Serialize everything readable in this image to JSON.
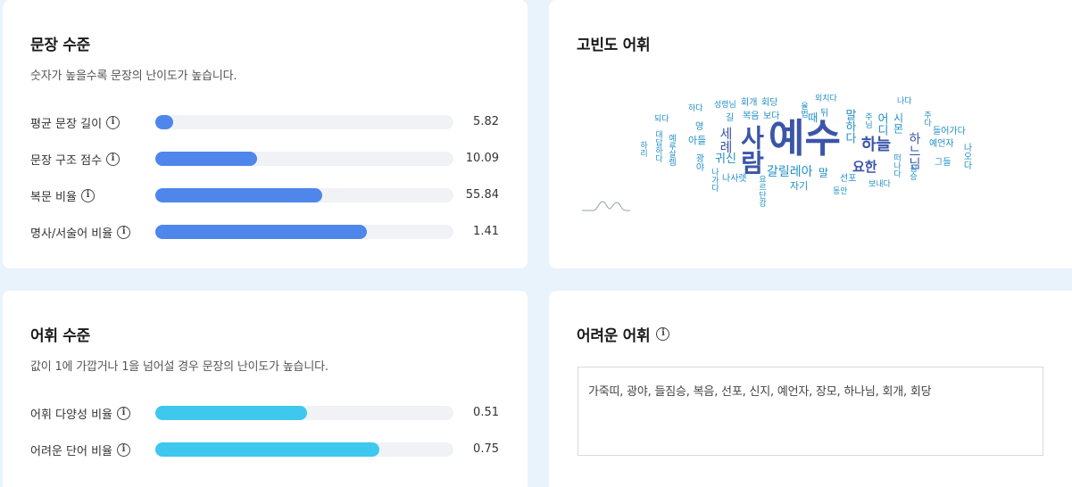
{
  "sentence_level": {
    "title": "문장 수준",
    "desc": "숫자가 높을수록 문장의 난이도가 높습니다.",
    "rows": [
      {
        "label": "평균 문장 길이",
        "value": "5.82",
        "fill": 0.06
      },
      {
        "label": "문장 구조 점수",
        "value": "10.09",
        "fill": 0.34
      },
      {
        "label": "복문 비율",
        "value": "55.84",
        "fill": 0.56
      },
      {
        "label": "명사/서술어 비율",
        "value": "1.41",
        "fill": 0.71
      }
    ]
  },
  "frequent_words": {
    "title": "고빈도 어휘",
    "words": [
      "예수",
      "사람",
      "하늘",
      "요한",
      "갈릴레아",
      "세례",
      "귀신",
      "아들",
      "나사렛",
      "자기",
      "말",
      "하느님",
      "말하다",
      "어디",
      "선포",
      "때",
      "영",
      "길",
      "복음",
      "보다",
      "회개",
      "회당",
      "하다",
      "되다",
      "성령님",
      "외치다",
      "뒤",
      "나다",
      "들어가다",
      "예언자",
      "그들",
      "나오다",
      "보내다",
      "동안",
      "광야",
      "대답하다",
      "하리",
      "예루살렘",
      "요르단강",
      "나가다",
      "시몬",
      "짐승",
      "주님",
      "주다",
      "떠나다",
      "율법"
    ]
  },
  "vocab_level": {
    "title": "어휘 수준",
    "desc": "값이 1에 가깝거나 1을 넘어설 경우 문장의 난이도가 높습니다.",
    "rows": [
      {
        "label": "어휘 다양성 비율",
        "value": "0.51",
        "fill": 0.51
      },
      {
        "label": "어려운 단어 비율",
        "value": "0.75",
        "fill": 0.75
      }
    ]
  },
  "difficult_words": {
    "title": "어려운 어휘",
    "text": "가죽띠, 광야, 들짐승, 복음, 선포, 신지, 예언자, 장모, 하나님, 회개, 회당"
  },
  "colors": {
    "blue_bar": "#4f86ec",
    "cyan_bar": "#3ec8ee",
    "cloud_dark": "#3b55a8",
    "cloud_mid": "#1f8fc7"
  }
}
